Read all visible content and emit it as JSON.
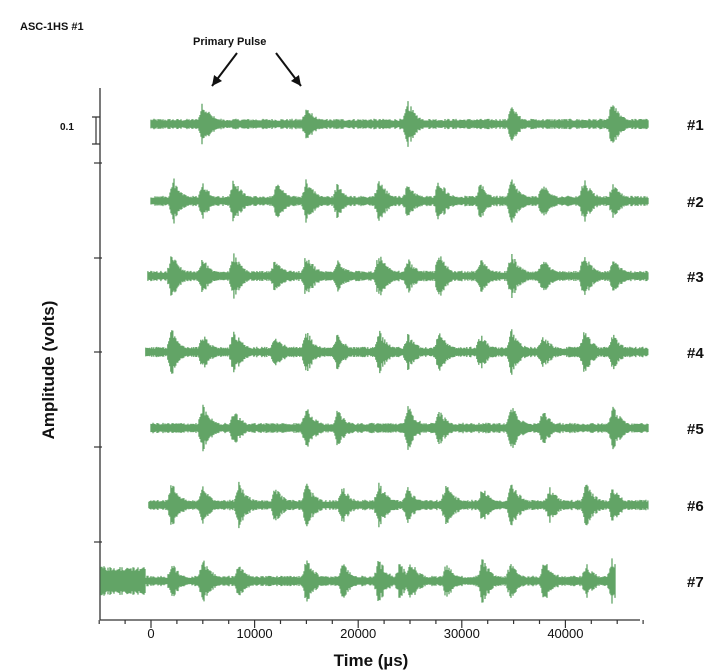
{
  "chart_data": {
    "type": "line",
    "title": "ASC-1HS #1",
    "annotation": "Primary Pulse",
    "xlabel": "Time (µs)",
    "ylabel": "Amplitude (volts)",
    "x_ticks": [
      "0",
      "10000",
      "20000",
      "30000",
      "40000"
    ],
    "x_tick_values": [
      0,
      10000,
      20000,
      30000,
      40000
    ],
    "xlim": [
      -5000,
      48000
    ],
    "amplitude_scale_label": "0.1",
    "amplitude_scale_value": 0.1,
    "series": [
      {
        "name": "#1",
        "x_start": 0,
        "x_end": 48000,
        "bursts": [
          5000,
          15000,
          24800,
          34800,
          44500
        ]
      },
      {
        "name": "#2",
        "x_start": 0,
        "x_end": 48000,
        "bursts": [
          2200,
          5000,
          8000,
          12200,
          15000,
          18000,
          22000,
          24800,
          27800,
          31800,
          34800,
          37800,
          41800,
          44600
        ]
      },
      {
        "name": "#3",
        "x_start": -300,
        "x_end": 48000,
        "bursts": [
          2000,
          5000,
          8000,
          12000,
          15000,
          18000,
          22000,
          24800,
          27800,
          31800,
          34800,
          37800,
          41800,
          44600
        ]
      },
      {
        "name": "#4",
        "x_start": -500,
        "x_end": 48000,
        "bursts": [
          2000,
          5000,
          8000,
          12000,
          15000,
          18000,
          22000,
          24800,
          27800,
          31800,
          34800,
          37800,
          41800,
          44600
        ]
      },
      {
        "name": "#5",
        "x_start": 0,
        "x_end": 48000,
        "bursts": [
          5000,
          8000,
          15000,
          18000,
          24800,
          27800,
          34800,
          37800,
          44600
        ]
      },
      {
        "name": "#6",
        "x_start": -200,
        "x_end": 48000,
        "bursts": [
          2000,
          5000,
          8500,
          12000,
          15000,
          18500,
          22000,
          24800,
          28500,
          32000,
          34800,
          38500,
          42000,
          44600
        ]
      },
      {
        "name": "#7",
        "x_start": -5000,
        "x_end": 44800,
        "bursts": [
          -5000,
          2000,
          5000,
          8500,
          15000,
          18500,
          22000,
          24000,
          25000,
          28500,
          32000,
          34700,
          38000,
          42000,
          44500
        ]
      }
    ],
    "series_color": "#5a9f5e",
    "legend": "right-of-traces"
  }
}
